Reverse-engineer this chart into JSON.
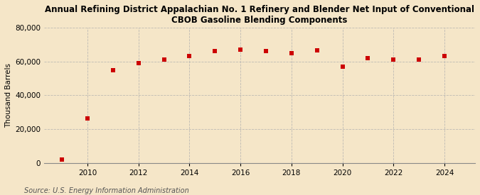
{
  "title": "Annual Refining District Appalachian No. 1 Refinery and Blender Net Input of Conventional\nCBOB Gasoline Blending Components",
  "ylabel": "Thousand Barrels",
  "source": "Source: U.S. Energy Information Administration",
  "background_color": "#f5e6c8",
  "plot_background_color": "#f5e6c8",
  "marker_color": "#cc0000",
  "marker": "s",
  "marker_size": 4,
  "years": [
    2009,
    2010,
    2011,
    2012,
    2013,
    2014,
    2015,
    2016,
    2017,
    2018,
    2019,
    2020,
    2021,
    2022,
    2023,
    2024
  ],
  "values": [
    2200,
    26500,
    55000,
    59000,
    61000,
    63000,
    66000,
    67000,
    66000,
    65000,
    66500,
    57000,
    62000,
    61000,
    61000,
    63000
  ],
  "xlim": [
    2008.3,
    2025.2
  ],
  "ylim": [
    0,
    80000
  ],
  "yticks": [
    0,
    20000,
    40000,
    60000,
    80000
  ],
  "xticks": [
    2010,
    2012,
    2014,
    2016,
    2018,
    2020,
    2022,
    2024
  ],
  "grid_color": "#b0b0b0",
  "grid_style": "--",
  "title_fontsize": 8.5,
  "label_fontsize": 7.5,
  "tick_fontsize": 7.5,
  "source_fontsize": 7.0
}
